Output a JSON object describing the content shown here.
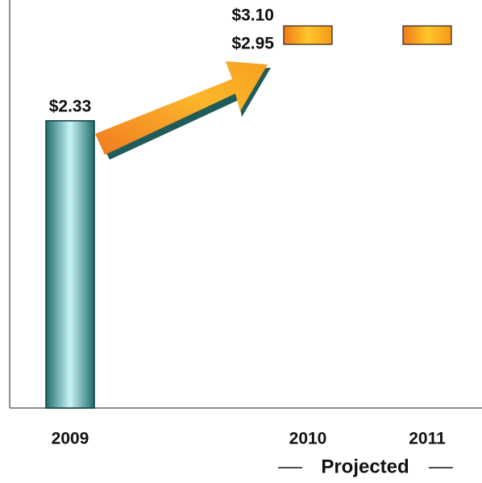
{
  "chart_data": {
    "type": "bar",
    "categories": [
      "2009",
      "2010",
      "2011"
    ],
    "values": [
      2.33,
      null,
      null
    ],
    "value_labels": [
      "$2.33",
      null,
      null
    ],
    "range_low": [
      null,
      2.95,
      2.95
    ],
    "range_high": [
      null,
      3.1,
      3.1
    ],
    "low_labels": [
      null,
      "$2.95",
      null
    ],
    "high_labels": [
      null,
      "$3.10",
      null
    ],
    "bar_color": "#2e8f8c",
    "range_color": "#f7a81b",
    "ylim": [
      0,
      3.31
    ],
    "annotation": "Projected"
  }
}
